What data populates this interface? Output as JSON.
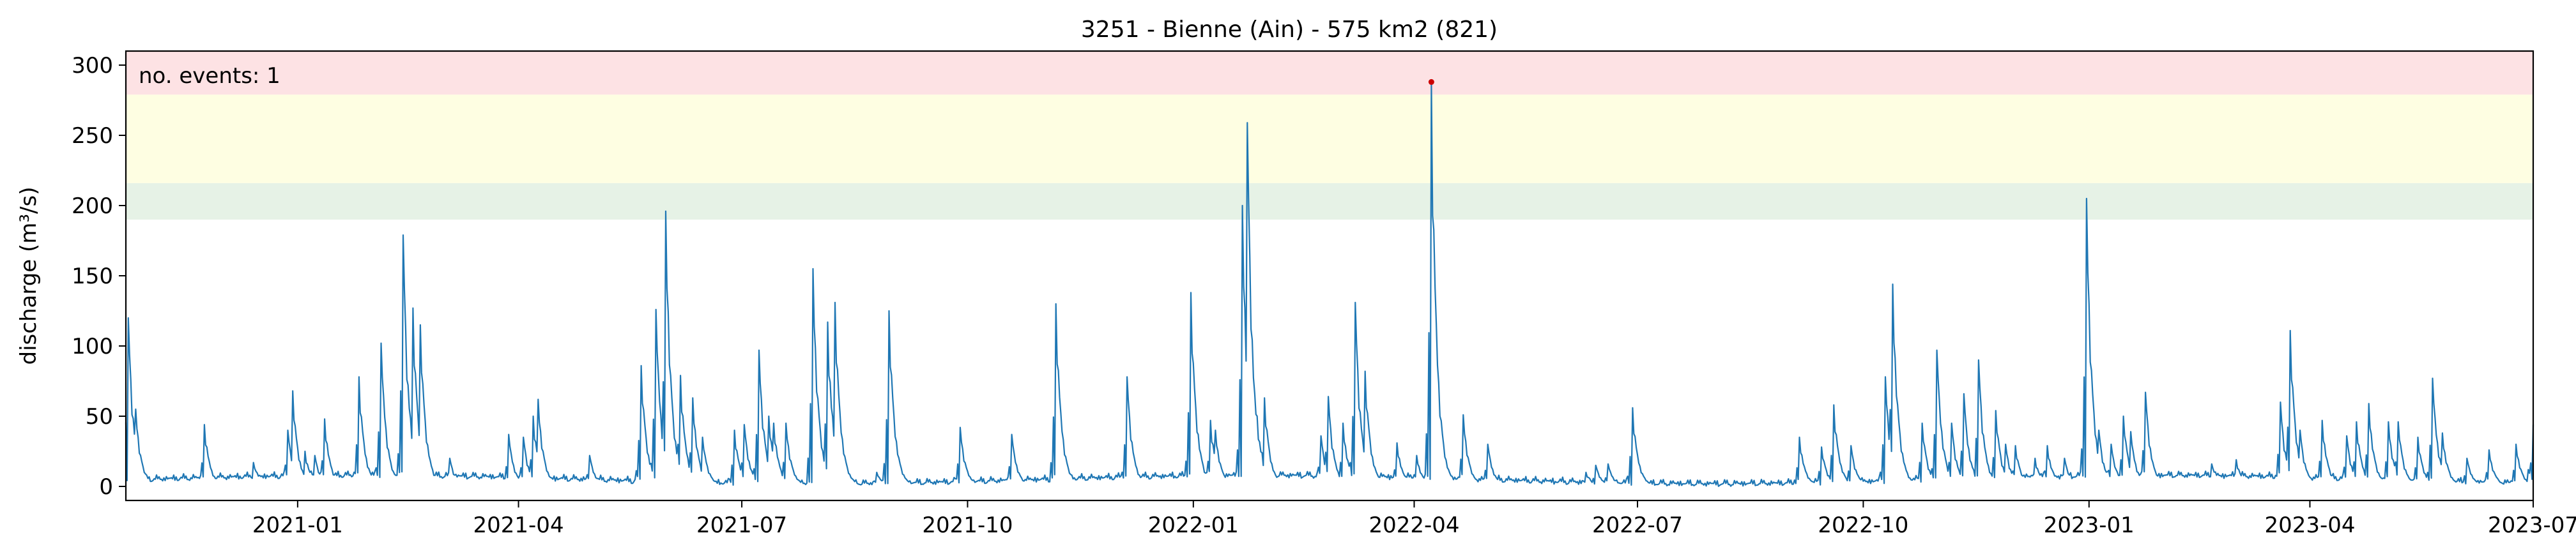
{
  "chart_data": {
    "type": "line",
    "title": "3251 - Bienne (Ain) - 575 km2 (821)",
    "xlabel": "",
    "ylabel": "discharge (m³/s)",
    "x_range": [
      "2020-10-23",
      "2023-07-01"
    ],
    "ylim": [
      -10,
      310
    ],
    "y_ticks": [
      0,
      50,
      100,
      150,
      200,
      250,
      300
    ],
    "x_ticks": [
      "2021-01",
      "2021-04",
      "2021-07",
      "2021-10",
      "2022-01",
      "2022-04",
      "2022-07",
      "2022-10",
      "2023-01",
      "2023-04",
      "2023-07"
    ],
    "grid": false,
    "line_color": "#1f77b4",
    "threshold_bands": [
      {
        "from": 190,
        "to": 216,
        "color": "#e6f2e6"
      },
      {
        "from": 216,
        "to": 279,
        "color": "#fefee2"
      },
      {
        "from": 279,
        "to": 310,
        "color": "#fde2e4"
      }
    ],
    "event_annotation": "no. events: 1",
    "annotation_color": "#cc0000",
    "events": [
      {
        "x": "2022-04-08",
        "y": 288
      }
    ],
    "series": [
      {
        "peaks": [
          [
            "2020-10-24",
            120
          ],
          [
            "2020-10-27",
            55
          ],
          [
            "2020-11-24",
            44
          ],
          [
            "2020-12-14",
            17
          ],
          [
            "2020-12-28",
            40
          ],
          [
            "2020-12-30",
            68
          ],
          [
            "2021-01-04",
            25
          ],
          [
            "2021-01-08",
            22
          ],
          [
            "2021-01-12",
            48
          ],
          [
            "2021-01-26",
            78
          ],
          [
            "2021-02-04",
            102
          ],
          [
            "2021-02-13",
            179
          ],
          [
            "2021-02-17",
            127
          ],
          [
            "2021-02-20",
            115
          ],
          [
            "2021-03-04",
            20
          ],
          [
            "2021-03-28",
            37
          ],
          [
            "2021-04-03",
            35
          ],
          [
            "2021-04-07",
            50
          ],
          [
            "2021-04-09",
            62
          ],
          [
            "2021-04-30",
            22
          ],
          [
            "2021-05-21",
            86
          ],
          [
            "2021-05-27",
            126
          ],
          [
            "2021-05-31",
            196
          ],
          [
            "2021-06-06",
            79
          ],
          [
            "2021-06-11",
            63
          ],
          [
            "2021-06-15",
            35
          ],
          [
            "2021-06-28",
            40
          ],
          [
            "2021-07-02",
            44
          ],
          [
            "2021-07-08",
            97
          ],
          [
            "2021-07-12",
            50
          ],
          [
            "2021-07-14",
            45
          ],
          [
            "2021-07-19",
            45
          ],
          [
            "2021-07-30",
            155
          ],
          [
            "2021-08-05",
            117
          ],
          [
            "2021-08-08",
            131
          ],
          [
            "2021-08-12",
            20
          ],
          [
            "2021-08-25",
            10
          ],
          [
            "2021-08-30",
            125
          ],
          [
            "2021-09-04",
            10
          ],
          [
            "2021-09-28",
            42
          ],
          [
            "2021-10-19",
            37
          ],
          [
            "2021-11-06",
            130
          ],
          [
            "2021-12-05",
            78
          ],
          [
            "2021-12-31",
            138
          ],
          [
            "2022-01-03",
            37
          ],
          [
            "2022-01-08",
            47
          ],
          [
            "2022-01-10",
            40
          ],
          [
            "2022-01-21",
            200
          ],
          [
            "2022-01-23",
            259
          ],
          [
            "2022-01-27",
            50
          ],
          [
            "2022-01-30",
            63
          ],
          [
            "2022-02-22",
            36
          ],
          [
            "2022-02-25",
            64
          ],
          [
            "2022-03-03",
            45
          ],
          [
            "2022-03-08",
            131
          ],
          [
            "2022-03-12",
            82
          ],
          [
            "2022-03-25",
            31
          ],
          [
            "2022-04-02",
            22
          ],
          [
            "2022-04-08",
            288
          ],
          [
            "2022-04-21",
            51
          ],
          [
            "2022-05-01",
            30
          ],
          [
            "2022-06-10",
            10
          ],
          [
            "2022-06-14",
            15
          ],
          [
            "2022-06-19",
            16
          ],
          [
            "2022-06-29",
            56
          ],
          [
            "2022-09-05",
            35
          ],
          [
            "2022-09-14",
            28
          ],
          [
            "2022-09-19",
            58
          ],
          [
            "2022-09-26",
            29
          ],
          [
            "2022-10-10",
            78
          ],
          [
            "2022-10-13",
            144
          ],
          [
            "2022-10-25",
            45
          ],
          [
            "2022-10-31",
            97
          ],
          [
            "2022-11-06",
            45
          ],
          [
            "2022-11-11",
            66
          ],
          [
            "2022-11-17",
            90
          ],
          [
            "2022-11-24",
            54
          ],
          [
            "2022-11-28",
            30
          ],
          [
            "2022-12-02",
            29
          ],
          [
            "2022-12-10",
            20
          ],
          [
            "2022-12-15",
            29
          ],
          [
            "2022-12-22",
            20
          ],
          [
            "2022-12-31",
            205
          ],
          [
            "2023-01-05",
            40
          ],
          [
            "2023-01-10",
            30
          ],
          [
            "2023-01-15",
            50
          ],
          [
            "2023-01-18",
            39
          ],
          [
            "2023-01-24",
            67
          ],
          [
            "2023-02-20",
            16
          ],
          [
            "2023-03-02",
            19
          ],
          [
            "2023-03-20",
            60
          ],
          [
            "2023-03-24",
            111
          ],
          [
            "2023-03-28",
            40
          ],
          [
            "2023-04-06",
            47
          ],
          [
            "2023-04-16",
            36
          ],
          [
            "2023-04-20",
            46
          ],
          [
            "2023-04-25",
            59
          ],
          [
            "2023-05-03",
            46
          ],
          [
            "2023-05-07",
            46
          ],
          [
            "2023-05-15",
            35
          ],
          [
            "2023-05-21",
            77
          ],
          [
            "2023-05-25",
            38
          ],
          [
            "2023-06-04",
            20
          ],
          [
            "2023-06-13",
            26
          ],
          [
            "2023-06-24",
            30
          ],
          [
            "2023-06-29",
            12
          ],
          [
            "2023-07-01",
            44
          ]
        ]
      }
    ]
  }
}
